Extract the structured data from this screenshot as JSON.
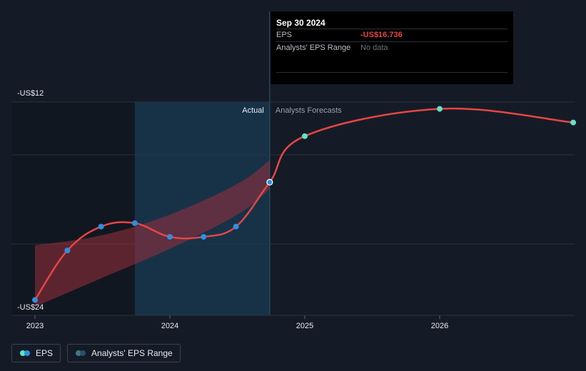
{
  "colors": {
    "background": "#151b26",
    "eps_line": "#e64545",
    "actual_marker": "#2f8fe0",
    "forecast_marker": "#5fe3c4",
    "range_band": "#9a2f3c",
    "actual_shade": "#17364d",
    "gridline": "#2b313c"
  },
  "annotations": {
    "actual": "Actual",
    "forecast": "Analysts Forecasts"
  },
  "tooltip": {
    "date": "Sep 30 2024",
    "rows": [
      {
        "label": "EPS",
        "value": "-US$16.736"
      },
      {
        "label": "Analysts' EPS Range",
        "value": "No data"
      }
    ]
  },
  "legend": [
    {
      "label": "EPS",
      "icon": "eps-dots-icon"
    },
    {
      "label": "Analysts' EPS Range",
      "icon": "range-dots-icon"
    }
  ],
  "chart_data": {
    "type": "line",
    "y_tick_labels": [
      "-US$12",
      "-US$24"
    ],
    "x_tick_labels": [
      "2023",
      "2024",
      "2025",
      "2026"
    ],
    "ylim": [
      -24,
      -12
    ],
    "xlim": [
      2023.0,
      2024.99
    ],
    "grid": true,
    "legend_position": "bottom-left",
    "past_shade_range": [
      2023.0,
      2023.74
    ],
    "actual_region": [
      2023.74,
      2024.74
    ],
    "series": [
      {
        "name": "EPS",
        "actual": [
          {
            "x": 2023.0,
            "y": -23.6
          },
          {
            "x": 2023.24,
            "y": -20.7
          },
          {
            "x": 2023.49,
            "y": -19.3
          },
          {
            "x": 2023.74,
            "y": -19.1
          },
          {
            "x": 2024.0,
            "y": -19.9
          },
          {
            "x": 2024.25,
            "y": -19.9
          },
          {
            "x": 2024.49,
            "y": -19.3
          },
          {
            "x": 2024.74,
            "y": -16.7
          }
        ],
        "forecast": [
          {
            "x": 2024.74,
            "y": -16.7
          },
          {
            "x": 2025.0,
            "y": -14.0
          },
          {
            "x": 2026.0,
            "y": -12.4
          },
          {
            "x": 2026.99,
            "y": -13.2
          }
        ]
      },
      {
        "name": "Analysts' EPS Range",
        "upper": [
          {
            "x": 2023.0,
            "y": -20.4
          },
          {
            "x": 2023.5,
            "y": -19.8
          },
          {
            "x": 2024.0,
            "y": -18.6
          },
          {
            "x": 2024.5,
            "y": -16.8
          },
          {
            "x": 2024.74,
            "y": -15.4
          }
        ],
        "lower": [
          {
            "x": 2023.0,
            "y": -24.0
          },
          {
            "x": 2023.5,
            "y": -22.3
          },
          {
            "x": 2024.0,
            "y": -20.6
          },
          {
            "x": 2024.5,
            "y": -18.6
          },
          {
            "x": 2024.74,
            "y": -17.1
          }
        ]
      }
    ]
  }
}
